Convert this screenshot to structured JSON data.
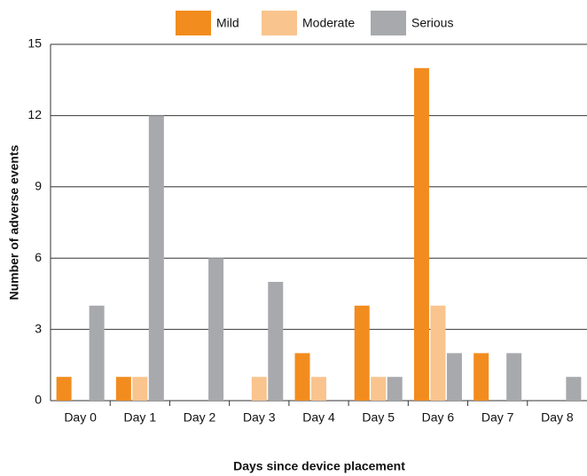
{
  "chart_data": {
    "type": "bar",
    "x_label": "Days since device placement",
    "y_label": "Number of adverse events",
    "categories": [
      "Day 0",
      "Day 1",
      "Day 2",
      "Day 3",
      "Day 4",
      "Day 5",
      "Day 6",
      "Day 7",
      "Day 8"
    ],
    "series": [
      {
        "name": "Mild",
        "color": "#f28c1e",
        "values": [
          1,
          1,
          0,
          0,
          2,
          4,
          14,
          2,
          0
        ]
      },
      {
        "name": "Moderate",
        "color": "#f9c48e",
        "values": [
          0,
          1,
          0,
          1,
          1,
          1,
          4,
          0,
          0
        ]
      },
      {
        "name": "Serious",
        "color": "#a7a9ac",
        "values": [
          4,
          12,
          6,
          5,
          0,
          1,
          2,
          2,
          1
        ]
      }
    ],
    "ylim": [
      0,
      15
    ],
    "yticks": [
      0,
      3,
      6,
      9,
      12,
      15
    ],
    "grid": true,
    "legend": "top"
  }
}
